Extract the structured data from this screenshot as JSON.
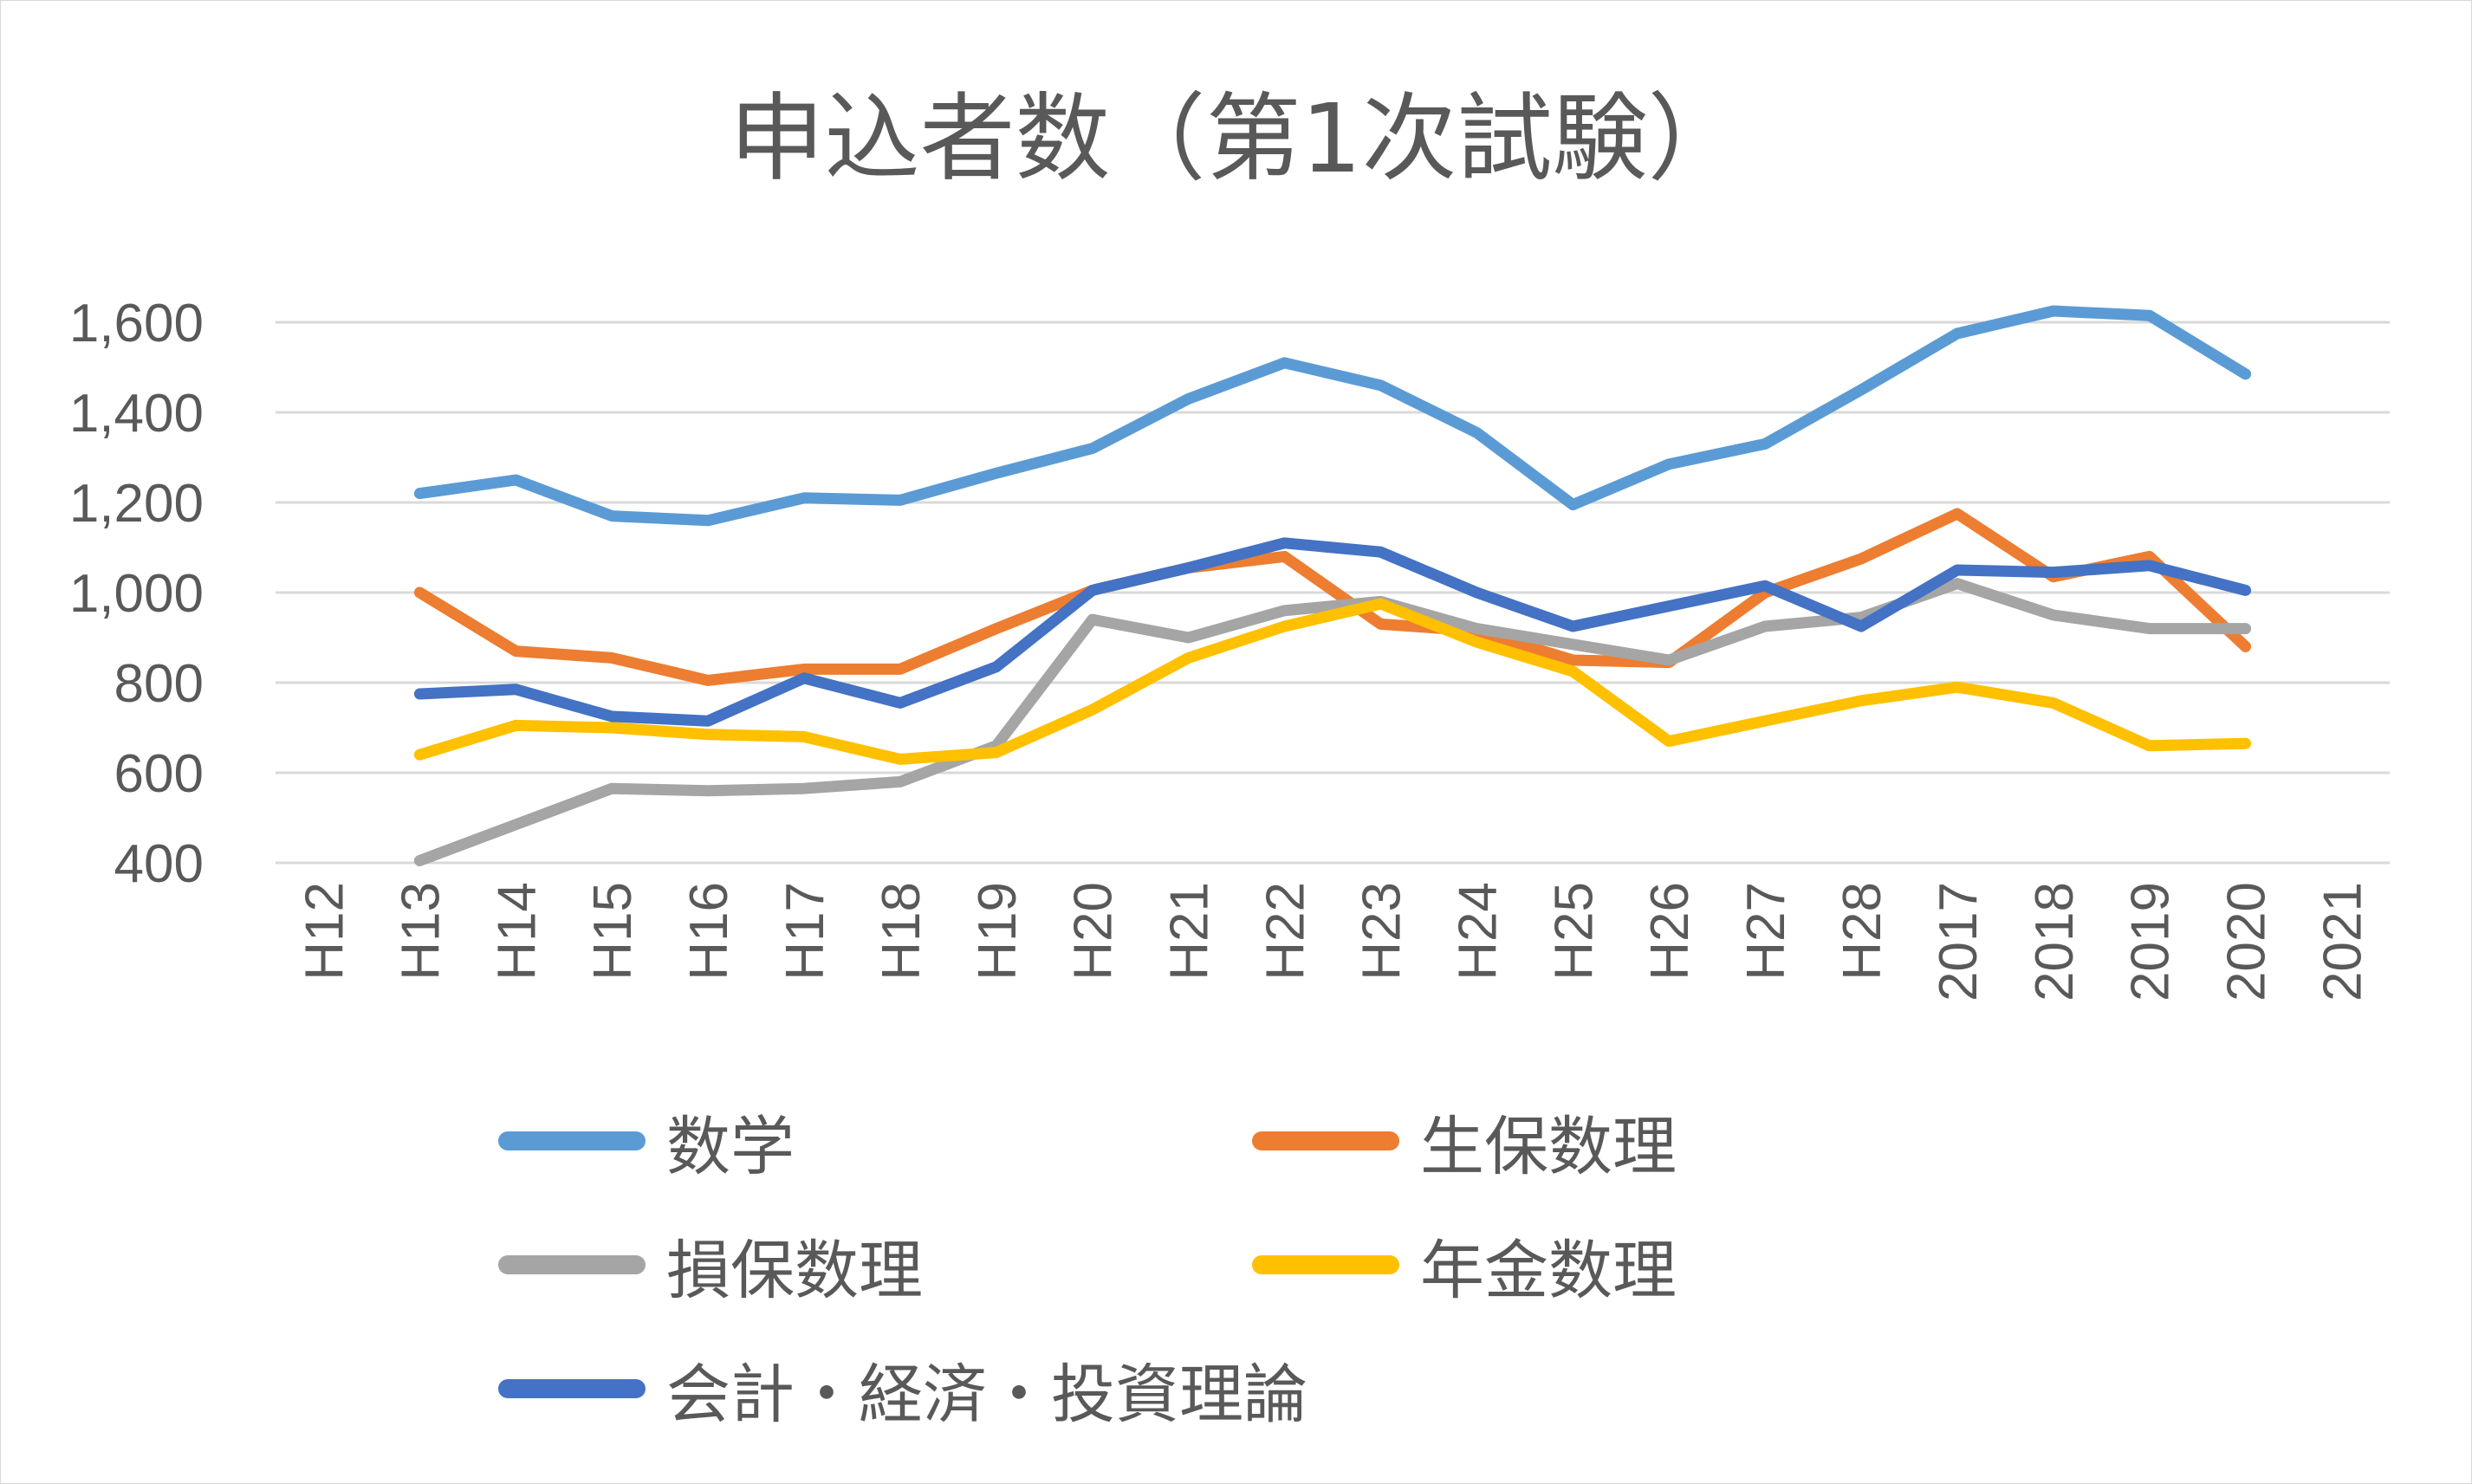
{
  "chart_data": {
    "type": "line",
    "title": "申込者数（第1次試験）",
    "categories": [
      "H12",
      "H13",
      "H14",
      "H15",
      "H16",
      "H17",
      "H18",
      "H19",
      "H20",
      "H21",
      "H22",
      "H23",
      "H24",
      "H25",
      "H26",
      "H27",
      "H28",
      "2017",
      "2018",
      "2019",
      "2020",
      "2021"
    ],
    "y_ticks": [
      "400",
      "600",
      "800",
      "1,000",
      "1,200",
      "1,400",
      "1,600"
    ],
    "ylim": [
      400,
      1600
    ],
    "grid": true,
    "legend_position": "bottom",
    "series": [
      {
        "name": "数学",
        "color": "#5b9bd5",
        "values": [
          null,
          1220,
          1250,
          1170,
          1160,
          1210,
          1205,
          1265,
          1320,
          1430,
          1510,
          1460,
          1355,
          1195,
          1285,
          1330,
          1450,
          1575,
          1625,
          1615,
          1485,
          null
        ]
      },
      {
        "name": "生保数理",
        "color": "#ed7d31",
        "values": [
          null,
          1000,
          870,
          855,
          805,
          830,
          830,
          920,
          1005,
          1055,
          1080,
          930,
          915,
          850,
          845,
          1000,
          1075,
          1175,
          1035,
          1080,
          880,
          null
        ]
      },
      {
        "name": "損保数理",
        "color": "#a5a5a5",
        "values": [
          null,
          405,
          485,
          565,
          560,
          565,
          580,
          660,
          940,
          900,
          960,
          980,
          920,
          885,
          850,
          925,
          945,
          1020,
          950,
          920,
          920,
          null
        ]
      },
      {
        "name": "年金数理",
        "color": "#ffc000",
        "values": [
          null,
          640,
          705,
          700,
          685,
          680,
          630,
          645,
          740,
          855,
          925,
          975,
          890,
          825,
          670,
          715,
          760,
          790,
          755,
          660,
          665,
          null
        ]
      },
      {
        "name": "会計・経済・投資理論",
        "color": "#4472c4",
        "values": [
          null,
          775,
          785,
          725,
          715,
          810,
          755,
          835,
          1005,
          1055,
          1110,
          1090,
          1000,
          925,
          970,
          1015,
          925,
          1050,
          1045,
          1060,
          1005,
          null
        ]
      }
    ]
  }
}
